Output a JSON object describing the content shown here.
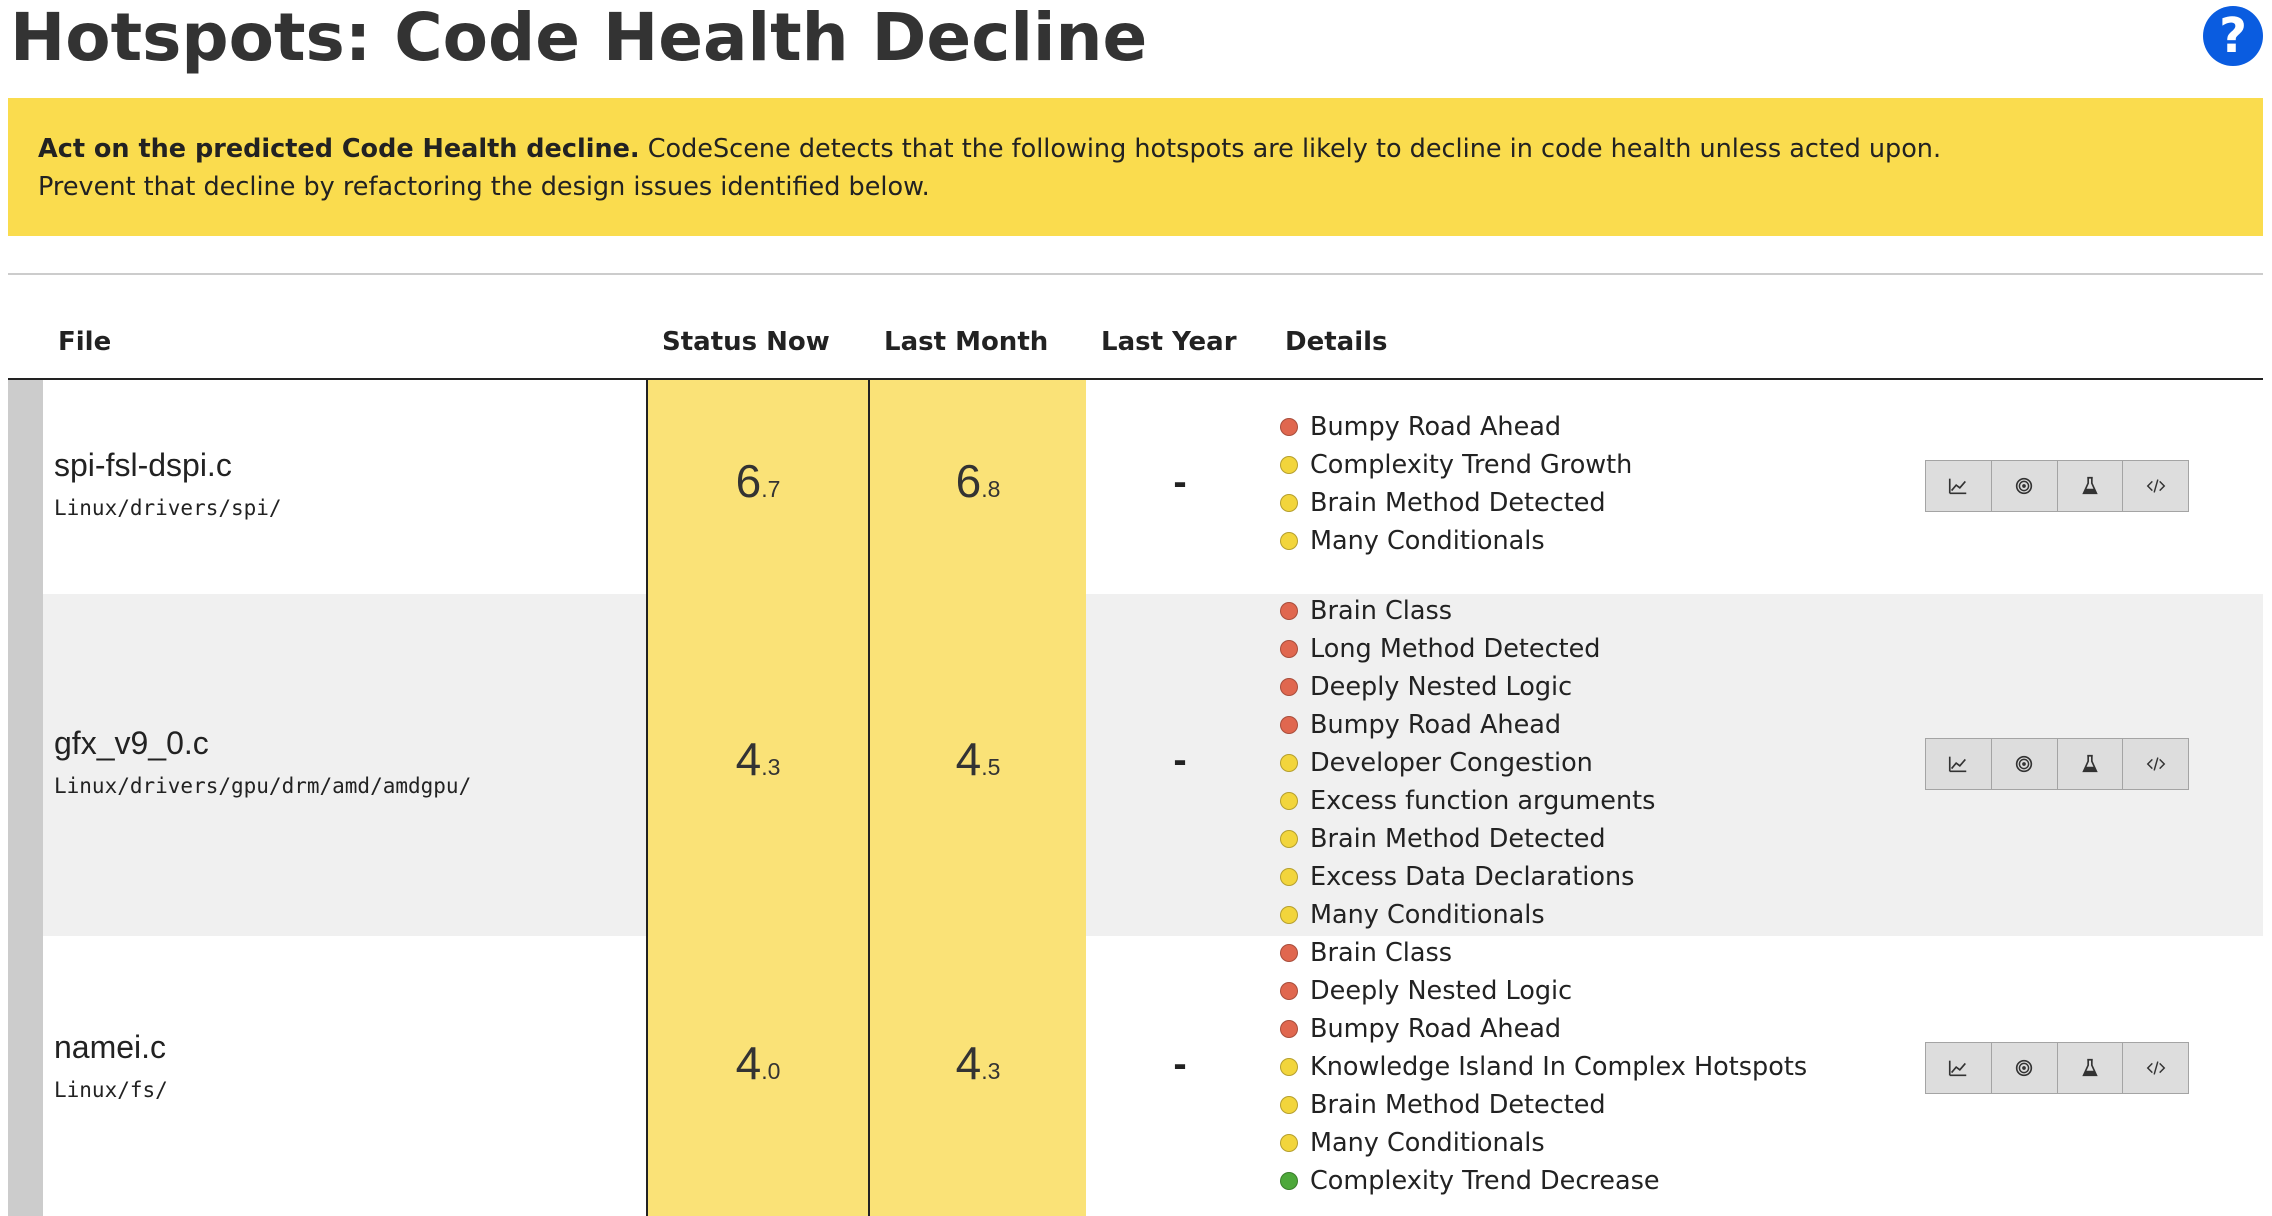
{
  "page": {
    "title": "Hotspots: Code Health Decline",
    "help_label": "?"
  },
  "banner": {
    "bold_text": "Act on the predicted Code Health decline.",
    "text_line1": " CodeScene detects that the following hotspots are likely to decline in code health unless acted upon.",
    "text_line2": "Prevent that decline by refactoring the design issues identified below."
  },
  "table": {
    "headers": {
      "file": "File",
      "status_now": "Status Now",
      "last_month": "Last Month",
      "last_year": "Last Year",
      "details": "Details"
    },
    "rows": [
      {
        "name": "spi-fsl-dspi.c",
        "path": "Linux/drivers/spi/",
        "status_now": {
          "whole": "6",
          "decimal": ".7"
        },
        "last_month": {
          "whole": "6",
          "decimal": ".8"
        },
        "last_year": "-",
        "details": [
          {
            "label": "Bumpy Road Ahead",
            "severity": "red"
          },
          {
            "label": "Complexity Trend Growth",
            "severity": "yellow"
          },
          {
            "label": "Brain Method Detected",
            "severity": "yellow"
          },
          {
            "label": "Many Conditionals",
            "severity": "yellow"
          }
        ]
      },
      {
        "name": "gfx_v9_0.c",
        "path": "Linux/drivers/gpu/drm/amd/amdgpu/",
        "status_now": {
          "whole": "4",
          "decimal": ".3"
        },
        "last_month": {
          "whole": "4",
          "decimal": ".5"
        },
        "last_year": "-",
        "details": [
          {
            "label": "Brain Class",
            "severity": "red"
          },
          {
            "label": "Long Method Detected",
            "severity": "red"
          },
          {
            "label": "Deeply Nested Logic",
            "severity": "red"
          },
          {
            "label": "Bumpy Road Ahead",
            "severity": "red"
          },
          {
            "label": "Developer Congestion",
            "severity": "yellow"
          },
          {
            "label": "Excess function arguments",
            "severity": "yellow"
          },
          {
            "label": "Brain Method Detected",
            "severity": "yellow"
          },
          {
            "label": "Excess Data Declarations",
            "severity": "yellow"
          },
          {
            "label": "Many Conditionals",
            "severity": "yellow"
          }
        ]
      },
      {
        "name": "namei.c",
        "path": "Linux/fs/",
        "status_now": {
          "whole": "4",
          "decimal": ".0"
        },
        "last_month": {
          "whole": "4",
          "decimal": ".3"
        },
        "last_year": "-",
        "details": [
          {
            "label": "Brain Class",
            "severity": "red"
          },
          {
            "label": "Deeply Nested Logic",
            "severity": "red"
          },
          {
            "label": "Bumpy Road Ahead",
            "severity": "red"
          },
          {
            "label": "Knowledge Island In Complex Hotspots",
            "severity": "yellow"
          },
          {
            "label": "Brain Method Detected",
            "severity": "yellow"
          },
          {
            "label": "Many Conditionals",
            "severity": "yellow"
          },
          {
            "label": "Complexity Trend Decrease",
            "severity": "green"
          }
        ]
      }
    ]
  },
  "action_icons": [
    "trend-chart-icon",
    "target-icon",
    "flask-icon",
    "code-icon"
  ],
  "colors": {
    "banner": "#fadc4e",
    "score_column": "#fae277",
    "red": "#e0674f",
    "yellow": "#f2d53c",
    "green": "#4da83a",
    "help": "#0a5ce0"
  }
}
